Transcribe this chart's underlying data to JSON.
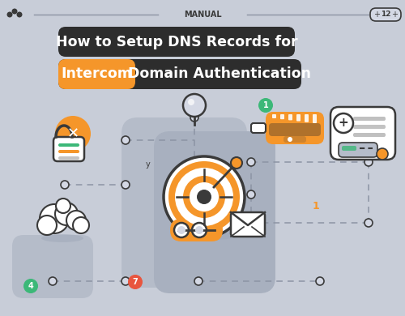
{
  "bg_color": "#c8cdd8",
  "title_line1": "How to Setup DNS Records for",
  "title_line2_orange": "Intercom",
  "title_line2_rest": " Domain Authentication",
  "title_bg": "#2d2d2d",
  "orange_color": "#f5962a",
  "header_text": "MANUAL",
  "badge_text": "12",
  "dot_color": "#3a3a3a",
  "panel_color": "#b5bcc9",
  "panel_dark": "#a8b0bf",
  "green_badge": "#3cb878",
  "red_badge": "#e8553e",
  "white": "#ffffff",
  "line_color": "#8c94a4",
  "node_fill": "#d4d8e4",
  "node_stroke": "#3a3a3a",
  "shadow_color": "#9fa8b8"
}
